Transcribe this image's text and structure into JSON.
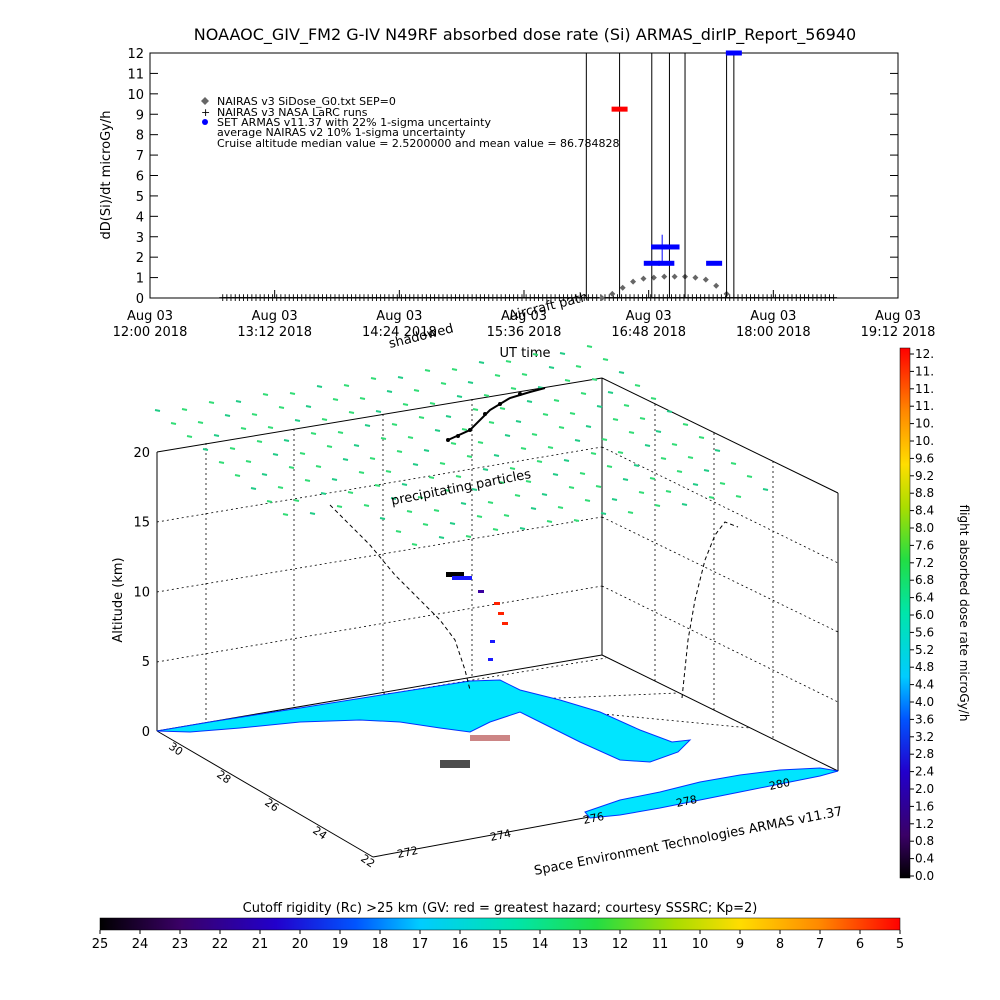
{
  "title": "NOAAOC_GIV_FM2 G-IV    N49RF  absorbed dose rate (Si) ARMAS_dirIP_Report_56940",
  "top_plot": {
    "ylabel": "dD(Si)/dt microGy/h",
    "xlabel": "UT time",
    "legend": [
      {
        "marker": "diamond",
        "text": "NAIRAS v3 SiDose_G0.txt SEP=0"
      },
      {
        "marker": "plus",
        "text": "NAIRAS v3 NASA LaRC runs"
      },
      {
        "marker": "dot",
        "text": "SET ARMAS v11.37 with 22% 1-sigma uncertainty"
      },
      {
        "marker": "none",
        "text": "average NAIRAS v2 10% 1-sigma uncertainty"
      },
      {
        "marker": "none",
        "text": "Cruise altitude median value = 2.5200000 and mean value = 86.784828"
      }
    ],
    "x_ticks": [
      {
        "l1": "Aug 03",
        "l2": "12:00 2018"
      },
      {
        "l1": "Aug 03",
        "l2": "13:12 2018"
      },
      {
        "l1": "Aug 03",
        "l2": "14:24 2018"
      },
      {
        "l1": "Aug 03",
        "l2": "15:36 2018"
      },
      {
        "l1": "Aug 03",
        "l2": "16:48 2018"
      },
      {
        "l1": "Aug 03",
        "l2": "18:00 2018"
      },
      {
        "l1": "Aug 03",
        "l2": "19:12 2018"
      }
    ],
    "y_ticks": [
      "0",
      "1",
      "2",
      "3",
      "4",
      "5",
      "6",
      "7",
      "8",
      "9",
      "10",
      "11",
      "12"
    ]
  },
  "chart_data": {
    "type": "scatter",
    "title": "NOAAOC_GIV_FM2 G-IV    N49RF  absorbed dose rate (Si) ARMAS_dirIP_Report_56940",
    "xlabel": "UT time",
    "ylabel": "dD(Si)/dt microGy/h",
    "x_unit": "hours UT, Aug 03 2018",
    "xlim": [
      12.0,
      19.2
    ],
    "ylim": [
      0,
      12
    ],
    "series": [
      {
        "name": "NAIRAS v3 SiDose_G0.txt SEP=0",
        "x": [
          16.35,
          16.45,
          16.55,
          16.65,
          16.75,
          16.85,
          16.95,
          17.05,
          17.15,
          17.25,
          17.35,
          17.45,
          17.55
        ],
        "y": [
          0.0,
          0.2,
          0.5,
          0.8,
          0.95,
          1.0,
          1.05,
          1.05,
          1.05,
          1.0,
          0.9,
          0.6,
          0.2
        ]
      },
      {
        "name": "NAIRAS v3 NASA LaRC runs",
        "x": [
          12.7,
          13.2,
          13.7,
          14.2,
          14.7,
          15.2,
          15.7,
          16.2,
          16.7,
          17.2,
          17.7,
          18.2,
          18.6
        ],
        "y": [
          0,
          0,
          0,
          0,
          0,
          0,
          0,
          0,
          0,
          0,
          0,
          0,
          0
        ]
      },
      {
        "name": "SET ARMAS v11.37 with 22% 1-sigma uncertainty",
        "x": [
          16.52,
          16.83,
          16.9,
          16.97,
          17.02,
          17.43,
          17.62
        ],
        "y": [
          9.25,
          1.7,
          2.5,
          1.7,
          2.5,
          1.7,
          12.0
        ]
      }
    ],
    "cruise_median": 2.52,
    "cruise_mean": 86.784828
  },
  "map3d": {
    "ylabel": "Altitude (km)",
    "alt_ticks": [
      "0",
      "5",
      "10",
      "15",
      "20"
    ],
    "lat_ticks": [
      "30",
      "28",
      "26",
      "24",
      "22"
    ],
    "lon_ticks": [
      "272",
      "274",
      "276",
      "278",
      "280"
    ],
    "annotations": {
      "aircraft_path": "Aircraft path",
      "shadowed": "shadowed",
      "precipitating": "precipitating particles",
      "credit": "Space Environment Technologies ARMAS v11.37"
    }
  },
  "right_colorbar": {
    "label": "flight absorbed dose rate microGy/h",
    "ticks": [
      "12.",
      "11.",
      "11.",
      "11.",
      "10.",
      "10.",
      "9.6",
      "9.2",
      "8.8",
      "8.4",
      "8.0",
      "7.6",
      "7.2",
      "6.8",
      "6.4",
      "6.0",
      "5.6",
      "5.2",
      "4.8",
      "4.4",
      "4.0",
      "3.6",
      "3.2",
      "2.8",
      "2.4",
      "2.0",
      "1.6",
      "1.2",
      "0.8",
      "0.4",
      "0.0"
    ]
  },
  "bottom_colorbar": {
    "title": "Cutoff rigidity (Rc) >25 km (GV: red = greatest hazard; courtesy SSSRC; Kp=2)",
    "ticks": [
      "25",
      "24",
      "23",
      "22",
      "21",
      "20",
      "19",
      "18",
      "17",
      "16",
      "15",
      "14",
      "13",
      "12",
      "11",
      "10",
      "9",
      "8",
      "7",
      "6",
      "5"
    ]
  },
  "colors": {
    "sep_marker": "#555555",
    "armas": "#0000ff",
    "armas_red": "#ff0000",
    "land": "#00e5ff",
    "vector": "#22dd88"
  }
}
